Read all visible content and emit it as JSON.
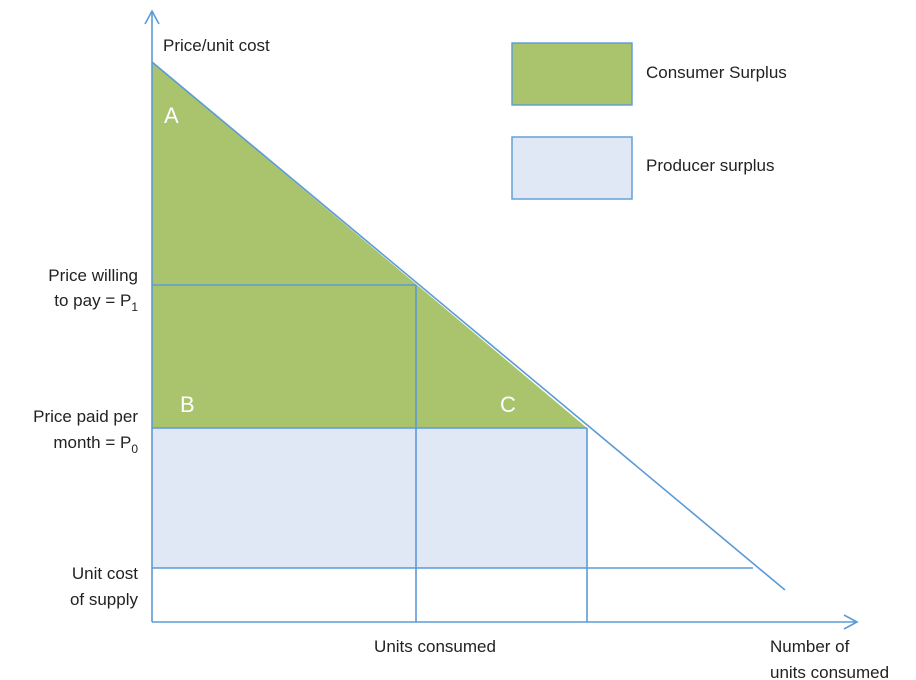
{
  "diagram": {
    "y_axis_label": "Price/unit cost",
    "x_axis_label": [
      "Number of",
      "units consumed"
    ],
    "units_consumed_label": "Units consumed",
    "price_willing": {
      "lines": [
        "Price willing",
        "to pay = P"
      ],
      "subscript": "1"
    },
    "price_paid": {
      "lines": [
        "Price paid per",
        "month = P"
      ],
      "subscript": "0"
    },
    "unit_cost": [
      "Unit cost",
      "of supply"
    ],
    "region_labels": [
      "A",
      "B",
      "C"
    ],
    "legend": [
      {
        "label": "Consumer Surplus",
        "color": "#a9c46c"
      },
      {
        "label": "Producer surplus",
        "color": "#dfe8f4"
      }
    ]
  }
}
